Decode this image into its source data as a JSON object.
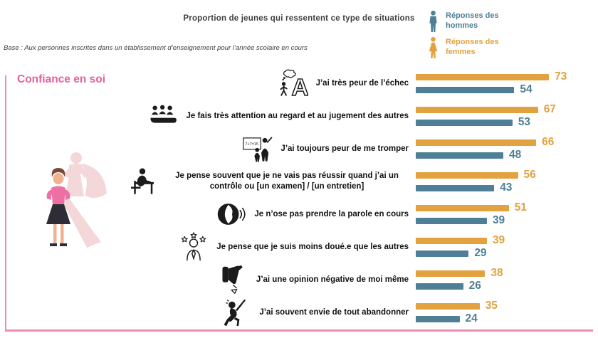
{
  "header": {
    "title": "Proportion de jeunes qui ressentent ce type de situations",
    "base_note": "Base : Aux personnes inscrites dans un établissement d’enseignement pour l’année scolaire en cours"
  },
  "legend": {
    "items": [
      {
        "label": "Réponses des hommes",
        "color": "#4e7f96",
        "icon": "man-icon"
      },
      {
        "label": "Réponses des femmes",
        "color": "#e2a23f",
        "icon": "woman-icon"
      }
    ]
  },
  "section": {
    "title": "Confiance en soi",
    "illustration": "confident-woman-superhero-shadow-illustration"
  },
  "colors": {
    "women_orange": "#e2a23f",
    "men_teal": "#4e7f96",
    "section_pink": "#e7609d",
    "frame_pink": "#ee8cb0",
    "title_gray": "#3f3f3f"
  },
  "chart_data": {
    "type": "bar",
    "orientation": "horizontal",
    "title": "Proportion de jeunes qui ressentent ce type de situations",
    "xlim": [
      0,
      80
    ],
    "grid": false,
    "value_labels": true,
    "legend_position": "top-right",
    "categories": [
      "J’ai très peur de l’échec",
      "Je fais très attention au regard et au jugement des autres",
      "J’ai toujours peur de me tromper",
      "Je pense souvent que je ne vais pas réussir quand j’ai un contrôle ou [un examen] / [un entretien]",
      "Je n’ose pas prendre la parole en cours",
      "Je pense que je suis moins doué.e que les autres",
      "J’ai une opinion négative de moi même",
      "J’ai souvent envie de tout abandonner"
    ],
    "icons": [
      "fear-of-failure-icon",
      "judgement-of-others-icon",
      "fear-of-mistakes-icon",
      "exam-failure-icon",
      "speaking-in-class-icon",
      "less-gifted-icon",
      "negative-self-opinion-icon",
      "give-up-icon"
    ],
    "series": [
      {
        "name": "Réponses des femmes",
        "color": "#e2a23f",
        "values": [
          73,
          67,
          66,
          56,
          51,
          39,
          38,
          35
        ]
      },
      {
        "name": "Réponses des hommes",
        "color": "#4e7f96",
        "values": [
          54,
          53,
          48,
          43,
          39,
          29,
          26,
          24
        ]
      }
    ]
  }
}
